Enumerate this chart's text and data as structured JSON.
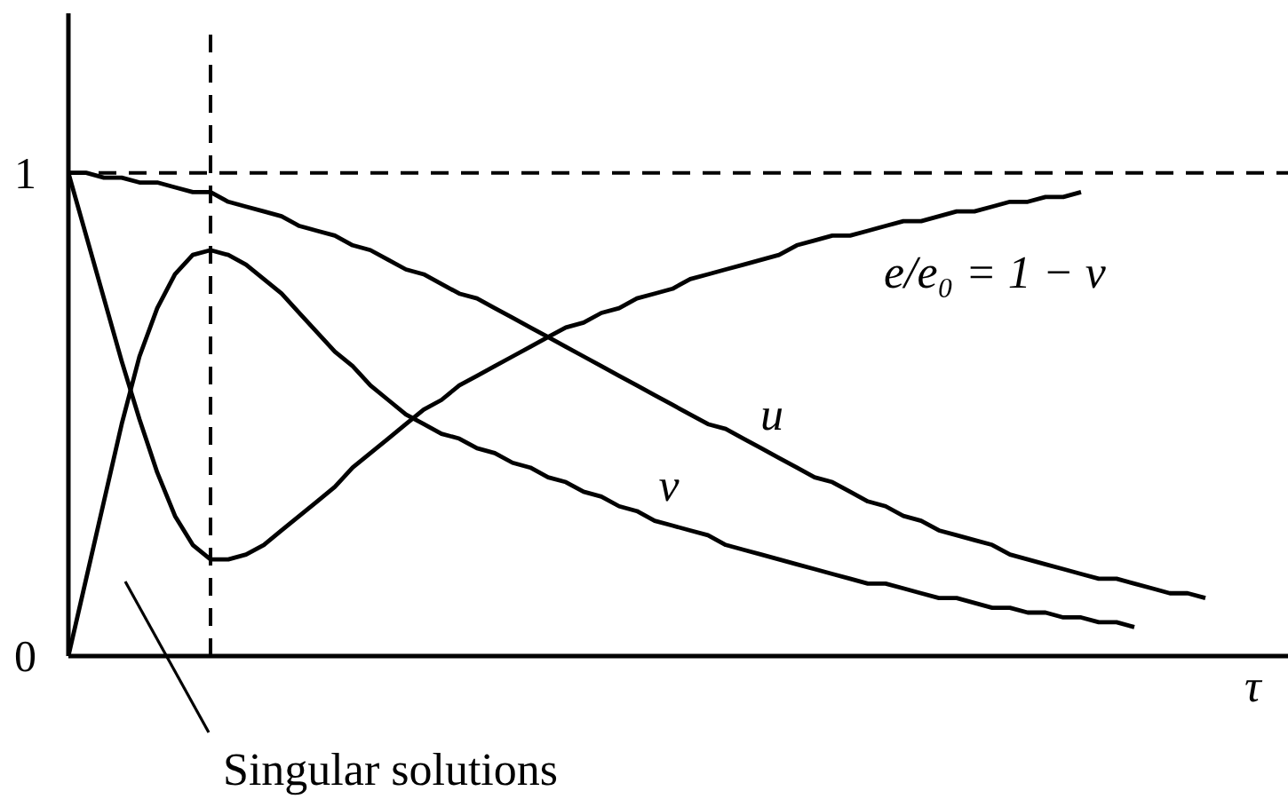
{
  "chart_data": {
    "type": "line",
    "categories": [
      null,
      null,
      null,
      null,
      null,
      null,
      null,
      null,
      null,
      null,
      null,
      null,
      null,
      null,
      null,
      null,
      null,
      null,
      null,
      null,
      null,
      null,
      null,
      null,
      null,
      null,
      null,
      null,
      null,
      null,
      null,
      null,
      null,
      null,
      null,
      null,
      null,
      null,
      null,
      null,
      null,
      null,
      null,
      null,
      null,
      null,
      null,
      null,
      null,
      null,
      null,
      null,
      null,
      null,
      null,
      null,
      null,
      null,
      null,
      null,
      null,
      null,
      null,
      null,
      null,
      null,
      null,
      null,
      null
    ],
    "series": [
      {
        "name": "u",
        "color": "#000000",
        "values": [
          1.0,
          1.0,
          0.99,
          0.99,
          0.98,
          0.98,
          0.97,
          0.96,
          0.96,
          0.94,
          0.93,
          0.92,
          0.91,
          0.89,
          0.88,
          0.87,
          0.85,
          0.84,
          0.82,
          0.8,
          0.79,
          0.77,
          0.75,
          0.74,
          0.72,
          0.7,
          0.68,
          0.66,
          0.64,
          0.62,
          0.6,
          0.58,
          0.56,
          0.54,
          0.52,
          0.5,
          0.48,
          0.47,
          0.45,
          0.43,
          0.41,
          0.39,
          0.37,
          0.36,
          0.34,
          0.32,
          0.31,
          0.29,
          0.28,
          0.26,
          0.25,
          0.24,
          0.23,
          0.21,
          0.2,
          0.19,
          0.18,
          0.17,
          0.16,
          0.16,
          0.15,
          0.14,
          0.13,
          0.13,
          0.12,
          null,
          null,
          null,
          null
        ]
      },
      {
        "name": "v",
        "color": "#000000",
        "values": [
          0,
          0.16,
          0.32,
          0.48,
          0.62,
          0.72,
          0.79,
          0.83,
          0.84,
          0.83,
          0.81,
          0.78,
          0.75,
          0.71,
          0.67,
          0.63,
          0.6,
          0.56,
          0.53,
          0.5,
          0.48,
          0.46,
          0.45,
          0.43,
          0.42,
          0.4,
          0.39,
          0.37,
          0.36,
          0.34,
          0.33,
          0.31,
          0.3,
          0.28,
          0.27,
          0.26,
          0.25,
          0.23,
          0.22,
          0.21,
          0.2,
          0.19,
          0.18,
          0.17,
          0.16,
          0.15,
          0.15,
          0.14,
          0.13,
          0.12,
          0.12,
          0.11,
          0.1,
          0.1,
          0.09,
          0.09,
          0.08,
          0.08,
          0.07,
          0.07,
          0.06,
          null,
          null,
          null,
          null,
          null,
          null,
          null,
          null
        ]
      },
      {
        "name": "e/e₀ = 1 − v",
        "color": "#000000",
        "values": [
          1.0,
          0.87,
          0.74,
          0.61,
          0.49,
          0.38,
          0.29,
          0.23,
          0.2,
          0.2,
          0.21,
          0.23,
          0.26,
          0.29,
          0.32,
          0.35,
          0.39,
          0.42,
          0.45,
          0.48,
          0.51,
          0.53,
          0.56,
          0.58,
          0.6,
          0.62,
          0.64,
          0.66,
          0.68,
          0.69,
          0.71,
          0.72,
          0.74,
          0.75,
          0.76,
          0.78,
          0.79,
          0.8,
          0.81,
          0.82,
          0.83,
          0.85,
          0.86,
          0.87,
          0.87,
          0.88,
          0.89,
          0.9,
          0.9,
          0.91,
          0.92,
          0.92,
          0.93,
          0.94,
          0.94,
          0.95,
          0.95,
          0.96,
          null,
          null,
          null,
          null,
          null,
          null,
          null,
          null,
          null,
          null,
          null
        ]
      }
    ],
    "xlabel": "τ",
    "ylim": [
      0,
      1.33
    ],
    "yticks": [
      0,
      1
    ],
    "tick_labels": "y",
    "grid": false,
    "line_style": "solid",
    "ref_lines": [
      {
        "axis": "y",
        "value": 1,
        "color": "#000000",
        "line_style": "dashed"
      }
    ],
    "annotations": [
      "Singular solutions"
    ]
  }
}
